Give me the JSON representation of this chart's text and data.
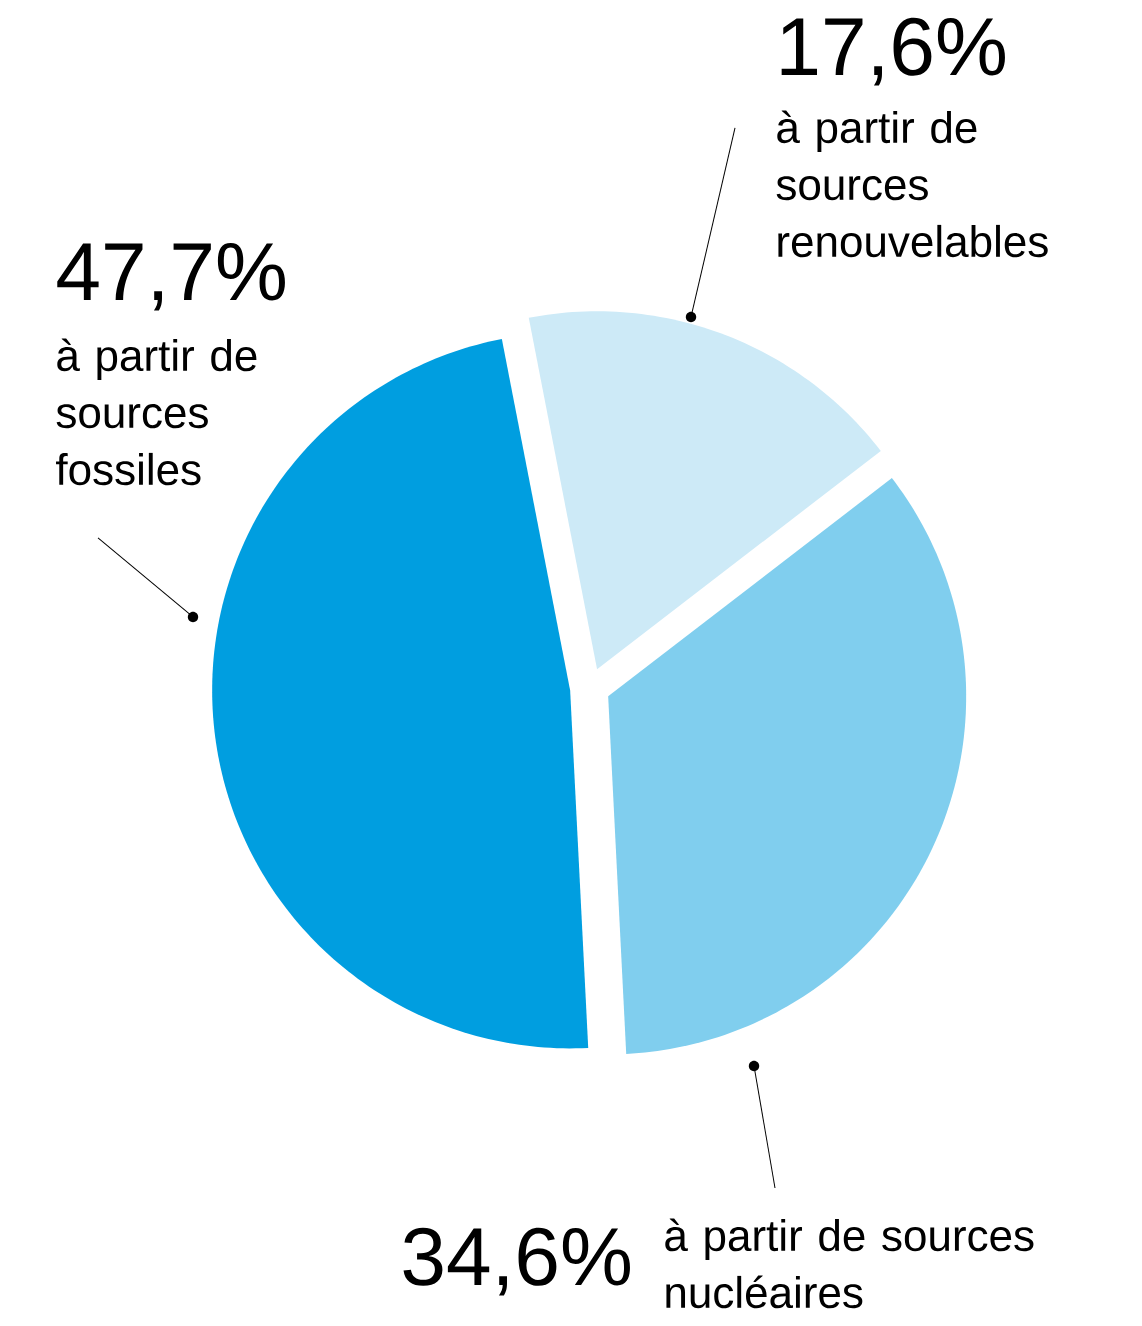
{
  "chart_data": {
    "type": "pie",
    "categories": [
      "à partir de sources renouvelables",
      "à partir de sources nucléaires",
      "à partir de sources fossiles"
    ],
    "values": [
      17.6,
      34.6,
      47.7
    ],
    "colors": [
      "#cdeaf7",
      "#80ceee",
      "#009ee0"
    ],
    "value_labels": [
      "17,6%",
      "34,6%",
      "47,7%"
    ]
  }
}
